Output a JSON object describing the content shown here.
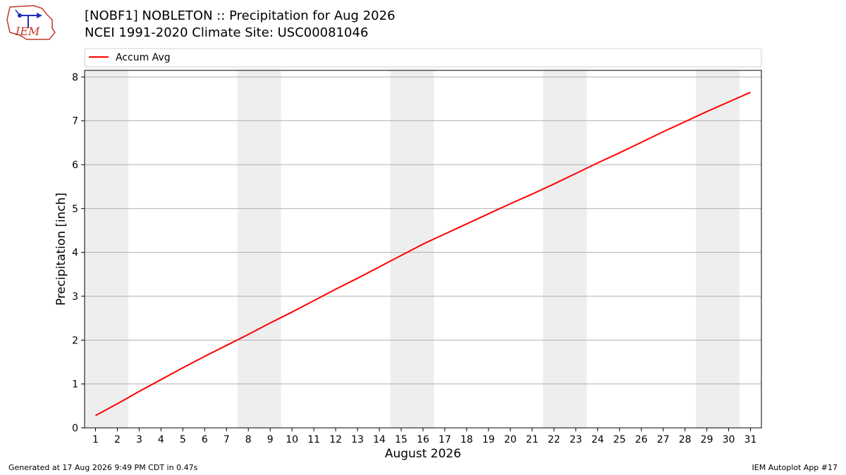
{
  "header": {
    "title_line1": "[NOBF1] NOBLETON :: Precipitation for Aug 2026",
    "title_line2": "NCEI 1991-2020 Climate Site: USC00081046",
    "logo_text": "IEM"
  },
  "footer": {
    "left": "Generated at 17 Aug 2026 9:49 PM CDT in 0.47s",
    "right": "IEM Autoplot App #17"
  },
  "chart_data": {
    "type": "line",
    "xlabel": "August 2026",
    "ylabel": "Precipitation [inch]",
    "xlim": [
      0.5,
      31.5
    ],
    "ylim": [
      0,
      8.15
    ],
    "x_ticks": [
      1,
      2,
      3,
      4,
      5,
      6,
      7,
      8,
      9,
      10,
      11,
      12,
      13,
      14,
      15,
      16,
      17,
      18,
      19,
      20,
      21,
      22,
      23,
      24,
      25,
      26,
      27,
      28,
      29,
      30,
      31
    ],
    "y_ticks": [
      0,
      1,
      2,
      3,
      4,
      5,
      6,
      7,
      8
    ],
    "grid": "horizontal",
    "legend_position": "top",
    "weekend_shading": [
      [
        1,
        2
      ],
      [
        8,
        9
      ],
      [
        15,
        16
      ],
      [
        22,
        23
      ],
      [
        29,
        30
      ]
    ],
    "shade_color": "#eeeeee",
    "series": [
      {
        "name": "Accum Avg",
        "color": "#ff0000",
        "x": [
          1,
          2,
          3,
          4,
          5,
          6,
          7,
          8,
          9,
          10,
          11,
          12,
          13,
          14,
          15,
          16,
          17,
          18,
          19,
          20,
          21,
          22,
          23,
          24,
          25,
          26,
          27,
          28,
          29,
          30,
          31
        ],
        "values": [
          0.28,
          0.55,
          0.83,
          1.1,
          1.37,
          1.63,
          1.88,
          2.13,
          2.39,
          2.64,
          2.9,
          3.16,
          3.41,
          3.67,
          3.93,
          4.19,
          4.42,
          4.65,
          4.88,
          5.11,
          5.33,
          5.56,
          5.8,
          6.04,
          6.27,
          6.51,
          6.75,
          6.98,
          7.21,
          7.43,
          7.65
        ]
      }
    ]
  }
}
